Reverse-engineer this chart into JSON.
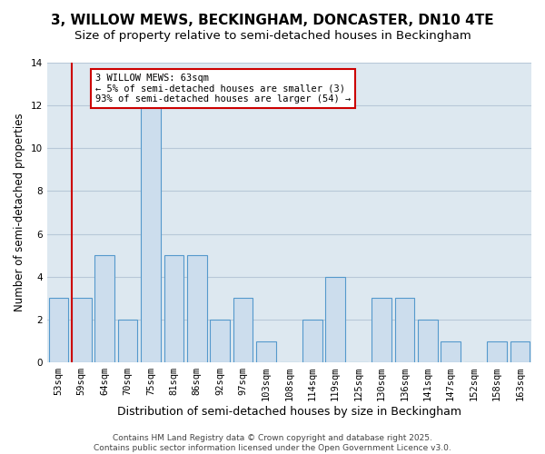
{
  "title": "3, WILLOW MEWS, BECKINGHAM, DONCASTER, DN10 4TE",
  "subtitle": "Size of property relative to semi-detached houses in Beckingham",
  "xlabel": "Distribution of semi-detached houses by size in Beckingham",
  "ylabel": "Number of semi-detached properties",
  "categories": [
    "53sqm",
    "59sqm",
    "64sqm",
    "70sqm",
    "75sqm",
    "81sqm",
    "86sqm",
    "92sqm",
    "97sqm",
    "103sqm",
    "108sqm",
    "114sqm",
    "119sqm",
    "125sqm",
    "130sqm",
    "136sqm",
    "141sqm",
    "147sqm",
    "152sqm",
    "158sqm",
    "163sqm"
  ],
  "values": [
    3,
    3,
    5,
    2,
    12,
    5,
    5,
    2,
    3,
    1,
    0,
    2,
    4,
    0,
    3,
    3,
    2,
    1,
    0,
    1,
    1
  ],
  "bar_color": "#ccdded",
  "bar_edge_color": "#5599cc",
  "annotation_text": "3 WILLOW MEWS: 63sqm\n← 5% of semi-detached houses are smaller (3)\n93% of semi-detached houses are larger (54) →",
  "annotation_box_color": "#ffffff",
  "annotation_box_edge": "#cc0000",
  "vline_color": "#cc0000",
  "grid_color": "#b8c8d8",
  "background_color": "#dde8f0",
  "ylim": [
    0,
    14
  ],
  "yticks": [
    0,
    2,
    4,
    6,
    8,
    10,
    12,
    14
  ],
  "vline_x": 0.575,
  "footer": "Contains HM Land Registry data © Crown copyright and database right 2025.\nContains public sector information licensed under the Open Government Licence v3.0.",
  "title_fontsize": 11,
  "subtitle_fontsize": 9.5,
  "xlabel_fontsize": 9,
  "ylabel_fontsize": 8.5,
  "tick_fontsize": 7.5,
  "footer_fontsize": 6.5,
  "annot_fontsize": 7.5
}
